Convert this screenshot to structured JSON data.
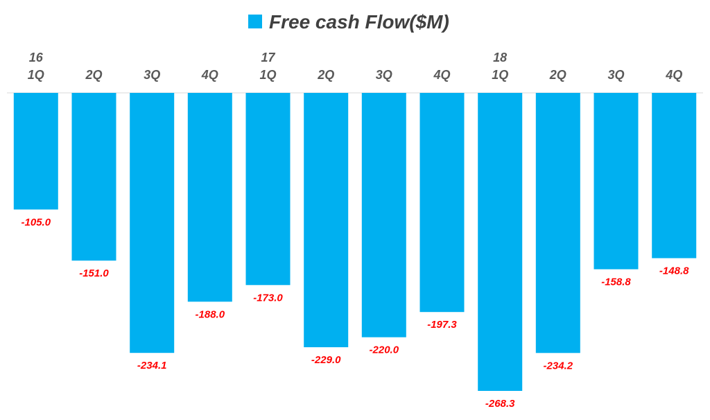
{
  "chart_data": {
    "type": "bar",
    "categories": [
      "16 1Q",
      "2Q",
      "3Q",
      "4Q",
      "17 1Q",
      "2Q",
      "3Q",
      "4Q",
      "18 1Q",
      "2Q",
      "3Q",
      "4Q"
    ],
    "tick_labels": [
      {
        "year": "16",
        "quarter": "1Q"
      },
      {
        "year": "",
        "quarter": "2Q"
      },
      {
        "year": "",
        "quarter": "3Q"
      },
      {
        "year": "",
        "quarter": "4Q"
      },
      {
        "year": "17",
        "quarter": "1Q"
      },
      {
        "year": "",
        "quarter": "2Q"
      },
      {
        "year": "",
        "quarter": "3Q"
      },
      {
        "year": "",
        "quarter": "4Q"
      },
      {
        "year": "18",
        "quarter": "1Q"
      },
      {
        "year": "",
        "quarter": "2Q"
      },
      {
        "year": "",
        "quarter": "3Q"
      },
      {
        "year": "",
        "quarter": "4Q"
      }
    ],
    "series": [
      {
        "name": "Free cash Flow($M)",
        "values": [
          -105.0,
          -151.0,
          -234.1,
          -188.0,
          -173.0,
          -229.0,
          -220.0,
          -197.3,
          -268.3,
          -234.2,
          -158.8,
          -148.8
        ],
        "labels": [
          "-105.0",
          "-151.0",
          "-234.1",
          "-188.0",
          "-173.0",
          "-229.0",
          "-220.0",
          "-197.3",
          "-268.3",
          "-234.2",
          "-158.8",
          "-148.8"
        ]
      }
    ],
    "ylim": [
      -280,
      0
    ],
    "legend_position": "top-center",
    "grid": false,
    "colors": {
      "bar": "#00b0f0",
      "data_label": "#ff0000",
      "tick_label": "#595959",
      "legend_text": "#404040",
      "axis": "#d9d9d9"
    }
  }
}
